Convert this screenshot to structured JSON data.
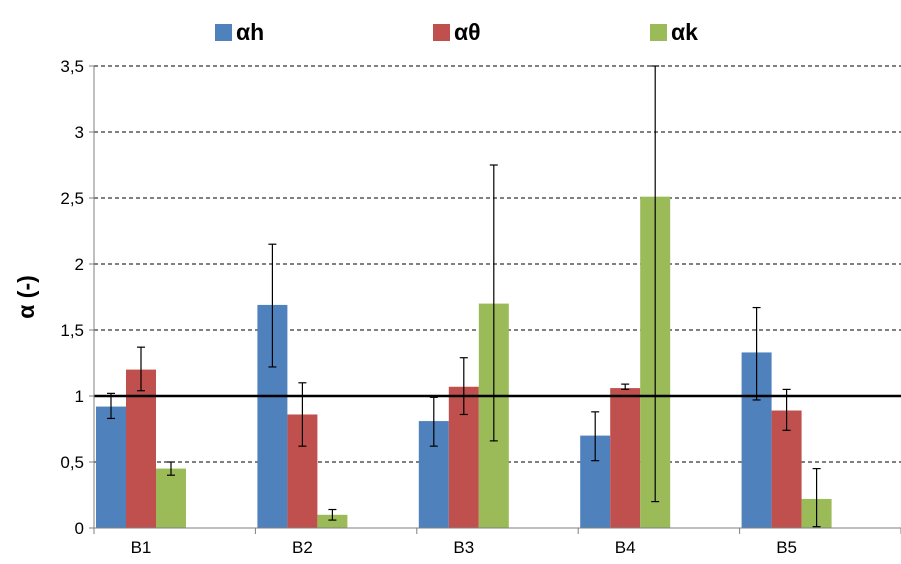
{
  "chart_data": {
    "type": "bar",
    "ylabel": "α (-)",
    "categories": [
      "B1",
      "B2",
      "B3",
      "B4",
      "B5"
    ],
    "ylim": [
      0,
      3.5
    ],
    "yticks": [
      "0",
      "0,5",
      "1",
      "1,5",
      "2",
      "2,5",
      "3",
      "3,5"
    ],
    "ytick_values": [
      0,
      0.5,
      1,
      1.5,
      2,
      2.5,
      3,
      3.5
    ],
    "reference_line": 1,
    "grid": "dashed horizontal",
    "legend_position": "top",
    "series": [
      {
        "name": "αh",
        "color": "#4f81bd",
        "values": [
          0.92,
          1.69,
          0.81,
          0.7,
          1.33
        ],
        "error_low": [
          0.83,
          1.22,
          0.62,
          0.51,
          0.97
        ],
        "error_high": [
          1.02,
          2.15,
          0.99,
          0.88,
          1.67
        ]
      },
      {
        "name": "αθ",
        "color": "#c0504d",
        "values": [
          1.2,
          0.86,
          1.07,
          1.06,
          0.89
        ],
        "error_low": [
          1.04,
          0.62,
          0.86,
          1.05,
          0.74
        ],
        "error_high": [
          1.37,
          1.1,
          1.29,
          1.09,
          1.05
        ]
      },
      {
        "name": "αk",
        "color": "#9bbb59",
        "values": [
          0.45,
          0.1,
          1.7,
          2.51,
          0.22
        ],
        "error_low": [
          0.4,
          0.06,
          0.66,
          0.2,
          0.01
        ],
        "error_high": [
          0.5,
          0.14,
          2.75,
          3.5,
          0.45
        ]
      }
    ]
  }
}
